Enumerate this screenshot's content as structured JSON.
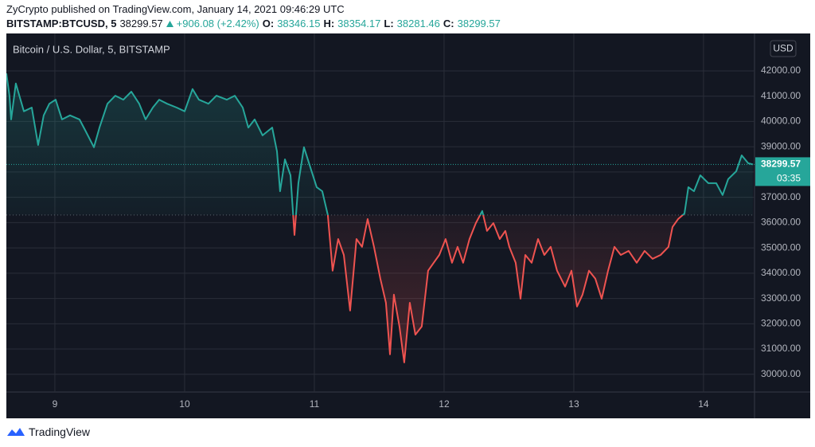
{
  "header": {
    "publisher": "ZyCrypto published on TradingView.com, January 14, 2021 09:46:29 UTC",
    "symbol": "BITSTAMP:BTCUSD, 5",
    "last": "38299.57",
    "change": "+906.08 (+2.42%)",
    "open_label": "O:",
    "open": "38346.15",
    "high_label": "H:",
    "high": "38354.17",
    "low_label": "L:",
    "low": "38281.46",
    "close_label": "C:",
    "close": "38299.57"
  },
  "chart_data": {
    "type": "baseline",
    "title": "Bitcoin / U.S. Dollar, 5, BITSTAMP",
    "currency": "USD",
    "countdown": "03:35",
    "last_price": 38299.57,
    "baseline": 36300,
    "up_color": "#26a69a",
    "down_color": "#ef5350",
    "grid": true,
    "x": [
      8.626,
      8.65,
      8.663,
      8.699,
      8.761,
      8.822,
      8.871,
      8.914,
      8.957,
      9.006,
      9.055,
      9.117,
      9.19,
      9.239,
      9.301,
      9.344,
      9.405,
      9.466,
      9.528,
      9.589,
      9.65,
      9.699,
      9.755,
      9.804,
      9.865,
      9.939,
      10.0,
      10.061,
      10.11,
      10.184,
      10.245,
      10.325,
      10.387,
      10.448,
      10.491,
      10.54,
      10.601,
      10.675,
      10.712,
      10.736,
      10.773,
      10.816,
      10.847,
      10.877,
      10.92,
      10.969,
      11.018,
      11.061,
      11.104,
      11.141,
      11.184,
      11.227,
      11.276,
      11.325,
      11.368,
      11.411,
      11.46,
      11.509,
      11.552,
      11.583,
      11.613,
      11.656,
      11.693,
      11.736,
      11.779,
      11.828,
      11.877,
      11.92,
      11.963,
      12.012,
      12.061,
      12.104,
      12.147,
      12.196,
      12.245,
      12.294,
      12.331,
      12.38,
      12.429,
      12.472,
      12.503,
      12.552,
      12.589,
      12.626,
      12.675,
      12.724,
      12.773,
      12.822,
      12.871,
      12.933,
      12.982,
      13.025,
      13.067,
      13.117,
      13.166,
      13.215,
      13.264,
      13.313,
      13.362,
      13.423,
      13.485,
      13.546,
      13.607,
      13.669,
      13.73,
      13.761,
      13.804,
      13.853,
      13.883,
      13.926,
      13.975,
      14.037,
      14.098,
      14.147,
      14.19,
      14.252,
      14.294,
      14.344,
      14.38
    ],
    "values": [
      41900,
      41020,
      40080,
      41500,
      40400,
      40550,
      39070,
      40240,
      40700,
      40860,
      40080,
      40240,
      40080,
      39600,
      38980,
      39760,
      40700,
      41020,
      40860,
      41180,
      40700,
      40080,
      40550,
      40860,
      40700,
      40550,
      40400,
      41280,
      40860,
      40700,
      41020,
      40860,
      41020,
      40550,
      39760,
      40080,
      39450,
      39760,
      38820,
      37240,
      38500,
      37870,
      35510,
      37560,
      38980,
      38190,
      37400,
      37240,
      36300,
      34100,
      35350,
      34720,
      32520,
      35350,
      35040,
      36140,
      35040,
      33780,
      32830,
      30790,
      33150,
      31890,
      30470,
      32830,
      31570,
      31890,
      34100,
      34410,
      34720,
      35350,
      34410,
      35040,
      34410,
      35350,
      35980,
      36460,
      35670,
      35980,
      35350,
      35670,
      35040,
      34410,
      32990,
      34720,
      34410,
      35350,
      34720,
      35040,
      34100,
      33470,
      34100,
      32680,
      33150,
      34100,
      33780,
      32990,
      34100,
      35040,
      34720,
      34880,
      34410,
      34880,
      34570,
      34720,
      35040,
      35830,
      36140,
      36360,
      37400,
      37240,
      37870,
      37560,
      37560,
      37090,
      37720,
      38030,
      38660,
      38350,
      38299.57
    ],
    "xlim": [
      8.626,
      14.393
    ],
    "xticks": [
      9,
      10,
      11,
      12,
      13,
      14
    ],
    "ylim": [
      29300,
      43480
    ],
    "yticks": [
      {
        "value": 30000,
        "label": "30000.00"
      },
      {
        "value": 31000,
        "label": "31000.00"
      },
      {
        "value": 32000,
        "label": "32000.00"
      },
      {
        "value": 33000,
        "label": "33000.00"
      },
      {
        "value": 34000,
        "label": "34000.00"
      },
      {
        "value": 35000,
        "label": "35000.00"
      },
      {
        "value": 36000,
        "label": "36000.00"
      },
      {
        "value": 37000,
        "label": "37000.00"
      },
      {
        "value": 38000,
        "label": "38000.00"
      },
      {
        "value": 39000,
        "label": "39000.00"
      },
      {
        "value": 40000,
        "label": "40000.00"
      },
      {
        "value": 41000,
        "label": "41000.00"
      },
      {
        "value": 42000,
        "label": "42000.00"
      }
    ]
  },
  "footer": {
    "brand": "TradingView"
  }
}
